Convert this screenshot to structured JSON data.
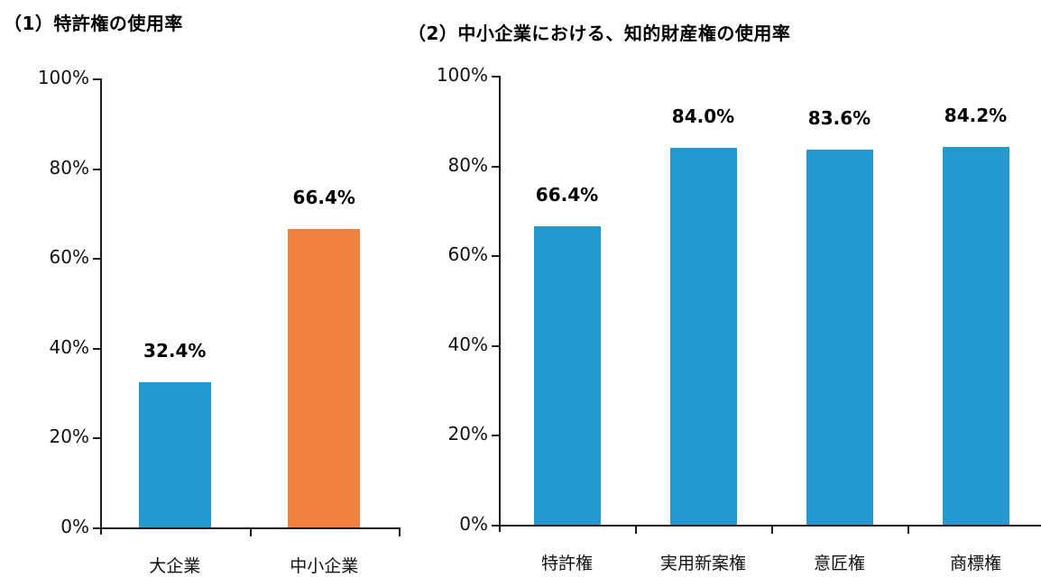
{
  "colors": {
    "blue": "#2399D0",
    "orange": "#F28140",
    "axis": "#1a1a1a"
  },
  "chart_data": [
    {
      "type": "bar",
      "title": "（1）特許権の使用率",
      "categories": [
        "大企業",
        "中小企業"
      ],
      "values": [
        32.4,
        66.4
      ],
      "value_labels": [
        "32.4%",
        "66.4%"
      ],
      "bar_colors": [
        "#2399D0",
        "#F28140"
      ],
      "xlabel": "",
      "ylabel": "",
      "ylim": [
        0,
        100
      ],
      "yticks": [
        "0%",
        "20%",
        "40%",
        "60%",
        "80%",
        "100%"
      ],
      "grid": false,
      "legend": null
    },
    {
      "type": "bar",
      "title": "（2）中小企業における、知的財産権の使用率",
      "categories": [
        "特許権",
        "実用新案権",
        "意匠権",
        "商標権"
      ],
      "values": [
        66.4,
        84.0,
        83.6,
        84.2
      ],
      "value_labels": [
        "66.4%",
        "84.0%",
        "83.6%",
        "84.2%"
      ],
      "bar_colors": [
        "#2399D0",
        "#2399D0",
        "#2399D0",
        "#2399D0"
      ],
      "xlabel": "",
      "ylabel": "",
      "ylim": [
        0,
        100
      ],
      "yticks": [
        "0%",
        "20%",
        "40%",
        "60%",
        "80%",
        "100%"
      ],
      "grid": false,
      "legend": null
    }
  ]
}
